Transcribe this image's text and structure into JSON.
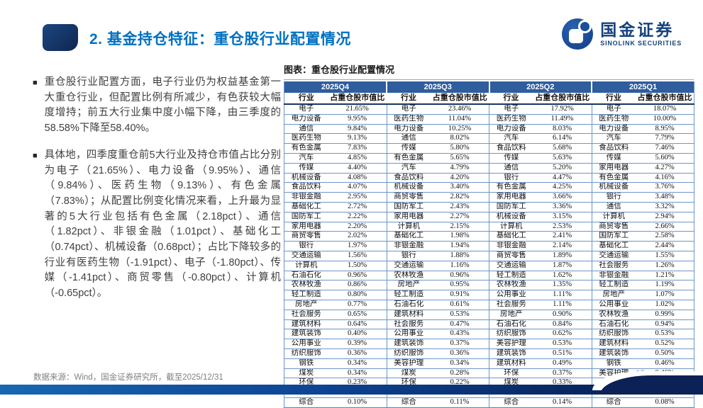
{
  "slide": {
    "title": "2. 基金持仓特征：重仓股行业配置情况",
    "page_number": "15",
    "footer_source": "数据来源：Wind，国金证券研究所，截至2025/12/31"
  },
  "logo": {
    "name_cn": "国金证券",
    "name_en": "SINOLINK SECURITIES",
    "brand_color": "#1b4e9b"
  },
  "bullets": [
    "重仓股行业配置方面，电子行业仍为权益基金第一大重仓行业，但配置比例有所减少，有色获较大幅度增持；前五大行业集中度小幅下降，由三季度的58.58%下降至58.40%。",
    "具体地，四季度重仓前5大行业及持仓市值占比分别为电子（21.65%）、电力设备（9.95%）、通信（9.84%）、医药生物（9.13%）、有色金属（7.83%）；从配置比例变化情况来看，上升最为显著的5大行业包括有色金属（2.18pct）、通信（1.82pct）、非银金融（1.01pct）、基础化工（0.74pct）、机械设备（0.68pct）；占比下降较多的行业有医药生物（-1.91pct）、电子（-1.80pct）、传媒（-1.41pct）、商贸零售（-0.80pct）、计算机（-0.65pct）。"
  ],
  "figure": {
    "title": "图表：重仓股行业配置情况",
    "col_industry": "行业",
    "col_value": "占重仓股市值比",
    "header_color": "#2f5d9e"
  },
  "chart_data": {
    "type": "table",
    "title": "重仓股行业配置情况",
    "columns_per_quarter": [
      "行业",
      "占重仓股市值比"
    ],
    "quarters": [
      {
        "label": "2025Q4",
        "rows": [
          [
            "电子",
            "21.65%"
          ],
          [
            "电力设备",
            "9.95%"
          ],
          [
            "通信",
            "9.84%"
          ],
          [
            "医药生物",
            "9.13%"
          ],
          [
            "有色金属",
            "7.83%"
          ],
          [
            "汽车",
            "4.85%"
          ],
          [
            "传媒",
            "4.40%"
          ],
          [
            "机械设备",
            "4.08%"
          ],
          [
            "食品饮料",
            "4.07%"
          ],
          [
            "非银金融",
            "2.95%"
          ],
          [
            "基础化工",
            "2.72%"
          ],
          [
            "国防军工",
            "2.22%"
          ],
          [
            "家用电器",
            "2.20%"
          ],
          [
            "商贸零售",
            "2.02%"
          ],
          [
            "银行",
            "1.97%"
          ],
          [
            "交通运输",
            "1.56%"
          ],
          [
            "计算机",
            "1.50%"
          ],
          [
            "石油石化",
            "0.96%"
          ],
          [
            "农林牧渔",
            "0.86%"
          ],
          [
            "轻工制造",
            "0.80%"
          ],
          [
            "房地产",
            "0.77%"
          ],
          [
            "社会服务",
            "0.65%"
          ],
          [
            "建筑材料",
            "0.64%"
          ],
          [
            "建筑装饰",
            "0.40%"
          ],
          [
            "公用事业",
            "0.39%"
          ],
          [
            "纺织服饰",
            "0.36%"
          ],
          [
            "钢铁",
            "0.34%"
          ],
          [
            "煤炭",
            "0.34%"
          ],
          [
            "环保",
            "0.23%"
          ],
          [
            "美容护理",
            "0.20%"
          ],
          [
            "综合",
            "0.10%"
          ]
        ]
      },
      {
        "label": "2025Q3",
        "rows": [
          [
            "电子",
            "23.46%"
          ],
          [
            "医药生物",
            "11.04%"
          ],
          [
            "电力设备",
            "10.25%"
          ],
          [
            "通信",
            "8.02%"
          ],
          [
            "传媒",
            "5.80%"
          ],
          [
            "有色金属",
            "5.65%"
          ],
          [
            "汽车",
            "4.79%"
          ],
          [
            "食品饮料",
            "4.20%"
          ],
          [
            "机械设备",
            "3.40%"
          ],
          [
            "商贸零售",
            "2.82%"
          ],
          [
            "国防军工",
            "2.43%"
          ],
          [
            "家用电器",
            "2.27%"
          ],
          [
            "计算机",
            "2.15%"
          ],
          [
            "基础化工",
            "1.98%"
          ],
          [
            "非银金融",
            "1.94%"
          ],
          [
            "银行",
            "1.88%"
          ],
          [
            "交通运输",
            "1.16%"
          ],
          [
            "农林牧渔",
            "0.96%"
          ],
          [
            "房地产",
            "0.95%"
          ],
          [
            "轻工制造",
            "0.91%"
          ],
          [
            "石油石化",
            "0.61%"
          ],
          [
            "建筑材料",
            "0.53%"
          ],
          [
            "社会服务",
            "0.47%"
          ],
          [
            "公用事业",
            "0.43%"
          ],
          [
            "建筑装饰",
            "0.37%"
          ],
          [
            "纺织服饰",
            "0.36%"
          ],
          [
            "美容护理",
            "0.34%"
          ],
          [
            "煤炭",
            "0.28%"
          ],
          [
            "环保",
            "0.22%"
          ],
          [
            "钢铁",
            "0.21%"
          ],
          [
            "综合",
            "0.11%"
          ]
        ]
      },
      {
        "label": "2025Q2",
        "rows": [
          [
            "电子",
            "17.92%"
          ],
          [
            "医药生物",
            "11.49%"
          ],
          [
            "电力设备",
            "8.03%"
          ],
          [
            "汽车",
            "6.14%"
          ],
          [
            "食品饮料",
            "5.68%"
          ],
          [
            "传媒",
            "5.63%"
          ],
          [
            "通信",
            "5.20%"
          ],
          [
            "银行",
            "4.47%"
          ],
          [
            "有色金属",
            "4.25%"
          ],
          [
            "家用电器",
            "3.66%"
          ],
          [
            "国防军工",
            "3.36%"
          ],
          [
            "机械设备",
            "3.15%"
          ],
          [
            "计算机",
            "2.53%"
          ],
          [
            "基础化工",
            "2.41%"
          ],
          [
            "非银金融",
            "2.14%"
          ],
          [
            "商贸零售",
            "1.89%"
          ],
          [
            "交通运输",
            "1.87%"
          ],
          [
            "轻工制造",
            "1.62%"
          ],
          [
            "农林牧渔",
            "1.35%"
          ],
          [
            "公用事业",
            "1.11%"
          ],
          [
            "社会服务",
            "1.11%"
          ],
          [
            "房地产",
            "0.90%"
          ],
          [
            "石油石化",
            "0.84%"
          ],
          [
            "纺织服饰",
            "0.62%"
          ],
          [
            "美容护理",
            "0.53%"
          ],
          [
            "建筑装饰",
            "0.51%"
          ],
          [
            "建筑材料",
            "0.49%"
          ],
          [
            "环保",
            "0.37%"
          ],
          [
            "煤炭",
            "0.33%"
          ],
          [
            "钢铁",
            "0.26%"
          ],
          [
            "综合",
            "0.14%"
          ]
        ]
      },
      {
        "label": "2025Q1",
        "rows": [
          [
            "电子",
            "18.07%"
          ],
          [
            "医药生物",
            "10.00%"
          ],
          [
            "电力设备",
            "8.95%"
          ],
          [
            "汽车",
            "7.79%"
          ],
          [
            "食品饮料",
            "7.46%"
          ],
          [
            "传媒",
            "5.60%"
          ],
          [
            "家用电器",
            "4.27%"
          ],
          [
            "有色金属",
            "4.16%"
          ],
          [
            "机械设备",
            "3.76%"
          ],
          [
            "银行",
            "3.48%"
          ],
          [
            "通信",
            "3.32%"
          ],
          [
            "计算机",
            "2.94%"
          ],
          [
            "商贸零售",
            "2.66%"
          ],
          [
            "国防军工",
            "2.58%"
          ],
          [
            "基础化工",
            "2.44%"
          ],
          [
            "交通运输",
            "1.55%"
          ],
          [
            "社会服务",
            "1.26%"
          ],
          [
            "非银金融",
            "1.21%"
          ],
          [
            "轻工制造",
            "1.19%"
          ],
          [
            "房地产",
            "1.07%"
          ],
          [
            "公用事业",
            "1.02%"
          ],
          [
            "农林牧渔",
            "0.99%"
          ],
          [
            "石油石化",
            "0.94%"
          ],
          [
            "纺织服饰",
            "0.53%"
          ],
          [
            "建筑材料",
            "0.52%"
          ],
          [
            "建筑装饰",
            "0.50%"
          ],
          [
            "钢铁",
            "0.46%"
          ],
          [
            "美容护理",
            "0.46%"
          ],
          [
            "煤炭",
            "0.41%"
          ],
          [
            "环保",
            "0.34%"
          ],
          [
            "综合",
            "0.08%"
          ]
        ]
      }
    ]
  }
}
